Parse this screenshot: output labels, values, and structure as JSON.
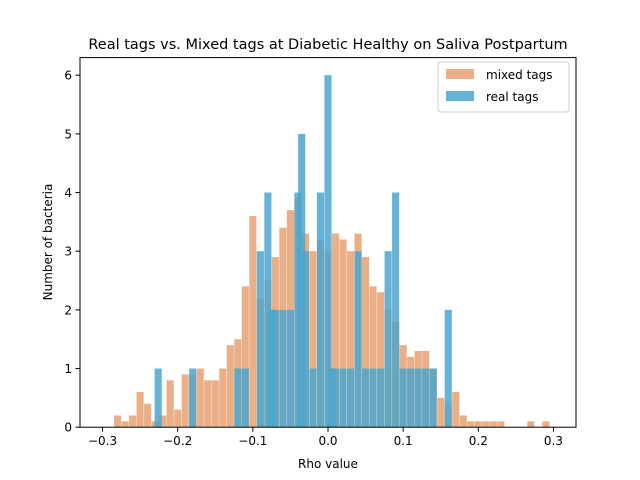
{
  "chart_data": {
    "type": "bar",
    "title": "Real tags vs. Mixed tags at Diabetic Healthy on Saliva Postpartum",
    "xlabel": "Rho value",
    "ylabel": "Number of bacteria",
    "xlim": [
      -0.33,
      0.33
    ],
    "ylim": [
      0,
      6.3
    ],
    "xticks": [
      -0.3,
      -0.2,
      -0.1,
      0.0,
      0.1,
      0.2,
      0.3
    ],
    "xtick_labels": [
      "−0.3",
      "−0.2",
      "−0.1",
      "0.0",
      "0.1",
      "0.2",
      "0.3"
    ],
    "yticks": [
      0,
      1,
      2,
      3,
      4,
      5,
      6
    ],
    "ytick_labels": [
      "0",
      "1",
      "2",
      "3",
      "4",
      "5",
      "6"
    ],
    "grid": false,
    "legend_position": "top-right",
    "bar_width": 0.0095,
    "series": [
      {
        "name": "mixed tags",
        "color": "#E8A679",
        "x": [
          -0.28,
          -0.27,
          -0.26,
          -0.25,
          -0.24,
          -0.23,
          -0.22,
          -0.21,
          -0.2,
          -0.19,
          -0.18,
          -0.17,
          -0.16,
          -0.15,
          -0.14,
          -0.13,
          -0.12,
          -0.11,
          -0.1,
          -0.09,
          -0.08,
          -0.07,
          -0.06,
          -0.05,
          -0.04,
          -0.03,
          -0.02,
          -0.01,
          0.0,
          0.01,
          0.02,
          0.03,
          0.04,
          0.05,
          0.06,
          0.07,
          0.08,
          0.09,
          0.1,
          0.11,
          0.12,
          0.13,
          0.14,
          0.15,
          0.16,
          0.17,
          0.18,
          0.19,
          0.2,
          0.21,
          0.22,
          0.23,
          0.24,
          0.25,
          0.27,
          0.29
        ],
        "values": [
          0.2,
          0.1,
          0.2,
          0.6,
          0.4,
          0.1,
          0.2,
          0.8,
          0.3,
          0.9,
          0.9,
          1.0,
          0.8,
          0.8,
          1.0,
          1.4,
          1.5,
          2.4,
          3.6,
          2.2,
          2.5,
          2.9,
          3.4,
          3.7,
          3.9,
          3.3,
          3.0,
          3.2,
          3.0,
          3.3,
          3.2,
          3.0,
          3.3,
          2.9,
          2.4,
          2.3,
          2.0,
          1.8,
          1.4,
          1.2,
          1.3,
          1.3,
          1.0,
          0.5,
          0.4,
          0.6,
          0.2,
          0.1,
          0.1,
          0.1,
          0.1,
          0.1,
          0.0,
          0.0,
          0.1,
          0.1
        ]
      },
      {
        "name": "real tags",
        "color": "#4BA6CE",
        "x": [
          -0.226,
          -0.18,
          -0.12,
          -0.11,
          -0.09,
          -0.08,
          -0.075,
          -0.07,
          -0.06,
          -0.05,
          -0.04,
          -0.035,
          -0.03,
          -0.02,
          -0.01,
          0.0,
          0.005,
          0.01,
          0.02,
          0.03,
          0.04,
          0.05,
          0.06,
          0.07,
          0.08,
          0.09,
          0.1,
          0.11,
          0.12,
          0.13,
          0.14,
          0.16
        ],
        "values": [
          1,
          1,
          1,
          1,
          3,
          4,
          2,
          2,
          2,
          2,
          4,
          5,
          3,
          1,
          4,
          6,
          1,
          1,
          1,
          1,
          3,
          1,
          1,
          1,
          3,
          4,
          1,
          1,
          1,
          1,
          1,
          2
        ]
      }
    ]
  }
}
